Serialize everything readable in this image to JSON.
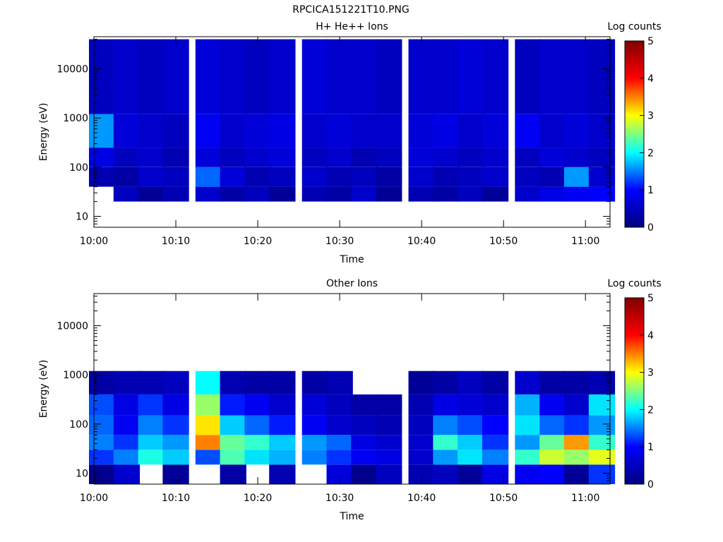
{
  "figure_title": "RPCICA151221T10.PNG",
  "colorbar": {
    "label": "Log counts",
    "min": 0,
    "max": 5,
    "ticks": [
      "0",
      "1",
      "2",
      "3",
      "4",
      "5"
    ],
    "colormap": [
      "#00007f",
      "#0000ff",
      "#00ffff",
      "#ffff00",
      "#ff0000",
      "#7f0000"
    ]
  },
  "chart_data": [
    {
      "type": "heatmap",
      "title": "H+ He++ Ions",
      "xlabel": "Time",
      "ylabel": "Energy (eV)",
      "x_scale": "time",
      "y_scale": "log",
      "xlim": [
        "10:00",
        "11:03"
      ],
      "ylim": [
        6,
        45000
      ],
      "x_ticks": [
        "10:00",
        "10:10",
        "10:20",
        "10:30",
        "10:40",
        "10:50",
        "11:00"
      ],
      "y_ticks": [
        "10",
        "100",
        "1000",
        "10000"
      ],
      "time_bins": [
        "10:01",
        "10:04",
        "10:07",
        "10:10",
        "10:14",
        "10:17",
        "10:20",
        "10:23",
        "10:27",
        "10:30",
        "10:33",
        "10:36",
        "10:40",
        "10:43",
        "10:46",
        "10:49",
        "10:53",
        "10:56",
        "10:59",
        "11:02"
      ],
      "energy_bands": [
        {
          "e_min": 20,
          "e_max": 40,
          "values": [
            null,
            0.5,
            0.2,
            0.4,
            0.6,
            0.3,
            0.5,
            0.2,
            0.4,
            0.3,
            0.6,
            0.2,
            0.4,
            0.3,
            0.5,
            0.2,
            0.6,
            0.8,
            0.9,
            1.0
          ]
        },
        {
          "e_min": 40,
          "e_max": 100,
          "values": [
            0.4,
            0.3,
            0.6,
            0.5,
            1.4,
            0.7,
            0.4,
            0.5,
            0.6,
            0.4,
            0.5,
            0.3,
            0.6,
            0.4,
            0.5,
            0.6,
            0.5,
            0.4,
            1.6,
            0.6
          ]
        },
        {
          "e_min": 100,
          "e_max": 250,
          "values": [
            0.8,
            0.5,
            0.6,
            0.4,
            0.7,
            0.5,
            0.6,
            0.7,
            0.5,
            0.6,
            0.4,
            0.5,
            0.7,
            0.6,
            0.5,
            0.6,
            0.5,
            0.7,
            0.6,
            0.5
          ]
        },
        {
          "e_min": 250,
          "e_max": 1200,
          "values": [
            1.6,
            0.7,
            0.6,
            0.5,
            0.9,
            0.6,
            0.7,
            0.8,
            0.6,
            0.7,
            0.6,
            0.6,
            0.7,
            0.8,
            0.6,
            0.7,
            0.9,
            0.6,
            0.7,
            0.6
          ]
        },
        {
          "e_min": 1200,
          "e_max": 40000,
          "values": [
            0.5,
            0.6,
            0.5,
            0.6,
            0.7,
            0.6,
            0.5,
            0.6,
            0.7,
            0.6,
            0.6,
            0.5,
            0.6,
            0.6,
            0.7,
            0.6,
            0.5,
            0.6,
            0.6,
            0.5
          ]
        }
      ]
    },
    {
      "type": "heatmap",
      "title": "Other Ions",
      "xlabel": "Time",
      "ylabel": "Energy (eV)",
      "x_scale": "time",
      "y_scale": "log",
      "xlim": [
        "10:00",
        "11:03"
      ],
      "ylim": [
        6,
        45000
      ],
      "x_ticks": [
        "10:00",
        "10:10",
        "10:20",
        "10:30",
        "10:40",
        "10:50",
        "11:00"
      ],
      "y_ticks": [
        "10",
        "100",
        "1000",
        "10000"
      ],
      "time_bins": [
        "10:01",
        "10:04",
        "10:07",
        "10:10",
        "10:14",
        "10:17",
        "10:20",
        "10:23",
        "10:27",
        "10:30",
        "10:33",
        "10:36",
        "10:40",
        "10:43",
        "10:46",
        "10:49",
        "10:53",
        "10:56",
        "10:59",
        "11:02"
      ],
      "energy_bands": [
        {
          "e_min": 6,
          "e_max": 15,
          "values": [
            0.1,
            0.6,
            null,
            0.2,
            null,
            0.3,
            null,
            0.4,
            null,
            0.7,
            0.1,
            0.5,
            0.4,
            0.5,
            0.2,
            0.8,
            0.9,
            1.0,
            0.2,
            1.2
          ]
        },
        {
          "e_min": 15,
          "e_max": 30,
          "values": [
            1.2,
            1.5,
            2.1,
            1.8,
            1.3,
            2.3,
            1.9,
            1.7,
            1.5,
            1.2,
            0.9,
            0.8,
            0.6,
            1.6,
            1.9,
            1.5,
            2.2,
            2.8,
            2.6,
            2.9
          ]
        },
        {
          "e_min": 30,
          "e_max": 60,
          "values": [
            1.5,
            1.2,
            1.8,
            1.6,
            3.5,
            2.4,
            2.2,
            1.8,
            1.6,
            1.4,
            0.8,
            0.6,
            0.6,
            2.2,
            1.8,
            1.2,
            1.6,
            2.4,
            3.4,
            2.2
          ]
        },
        {
          "e_min": 60,
          "e_max": 150,
          "values": [
            1.4,
            0.9,
            1.5,
            1.2,
            3.1,
            1.8,
            1.4,
            1.1,
            0.9,
            0.6,
            0.5,
            0.4,
            0.5,
            1.5,
            1.3,
            1.0,
            1.9,
            1.4,
            1.2,
            1.6
          ]
        },
        {
          "e_min": 150,
          "e_max": 400,
          "values": [
            1.3,
            0.8,
            1.2,
            0.8,
            2.6,
            1.1,
            0.9,
            0.6,
            0.7,
            0.5,
            0.3,
            0.3,
            0.4,
            0.8,
            0.7,
            0.6,
            1.7,
            0.9,
            0.6,
            1.9
          ]
        },
        {
          "e_min": 400,
          "e_max": 1200,
          "values": [
            0.3,
            0.4,
            0.4,
            0.5,
            2.0,
            0.4,
            0.3,
            0.3,
            0.3,
            0.4,
            null,
            null,
            0.2,
            0.3,
            0.5,
            0.3,
            0.6,
            0.3,
            0.3,
            0.4
          ]
        }
      ]
    }
  ]
}
